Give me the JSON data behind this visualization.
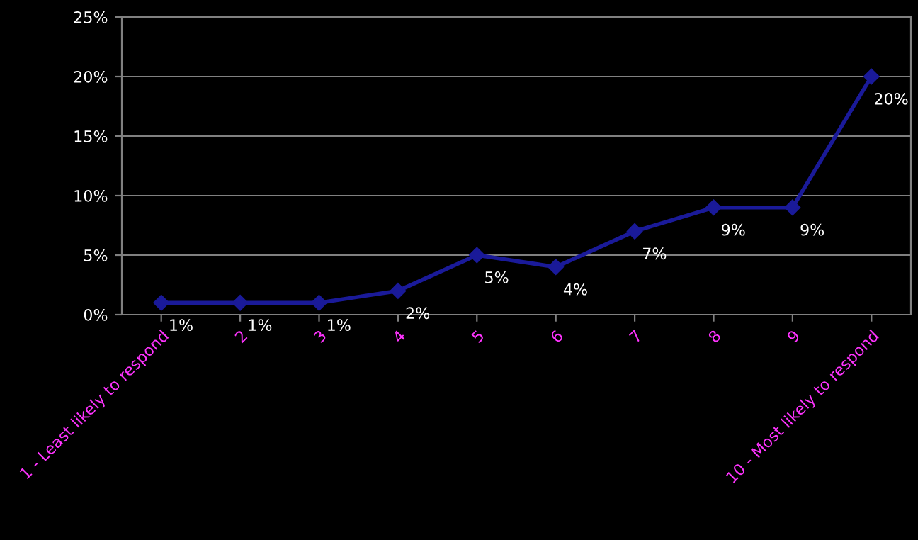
{
  "chart_data": {
    "type": "line",
    "categories": [
      "1 - Least likely to respond",
      "2",
      "3",
      "4",
      "5",
      "6",
      "7",
      "8",
      "9",
      "10 - Most likely to respond"
    ],
    "series": [
      {
        "color": "#1a1a99",
        "values": [
          1,
          1,
          1,
          2,
          5,
          4,
          7,
          9,
          9,
          20
        ]
      }
    ],
    "ylim": [
      0,
      25
    ],
    "yticks": [
      {
        "value": 0,
        "label": "0%"
      },
      {
        "value": 5,
        "label": "5%"
      },
      {
        "value": 10,
        "label": "10%"
      },
      {
        "value": 15,
        "label": "15%"
      },
      {
        "value": 20,
        "label": "20%"
      },
      {
        "value": 25,
        "label": "25%"
      }
    ],
    "value_labels": [
      "1%",
      "1%",
      "1%",
      "2%",
      "5%",
      "4%",
      "7%",
      "9%",
      "9%",
      "20%"
    ],
    "grid": "y",
    "marker": "diamond",
    "line_style": "solid"
  }
}
